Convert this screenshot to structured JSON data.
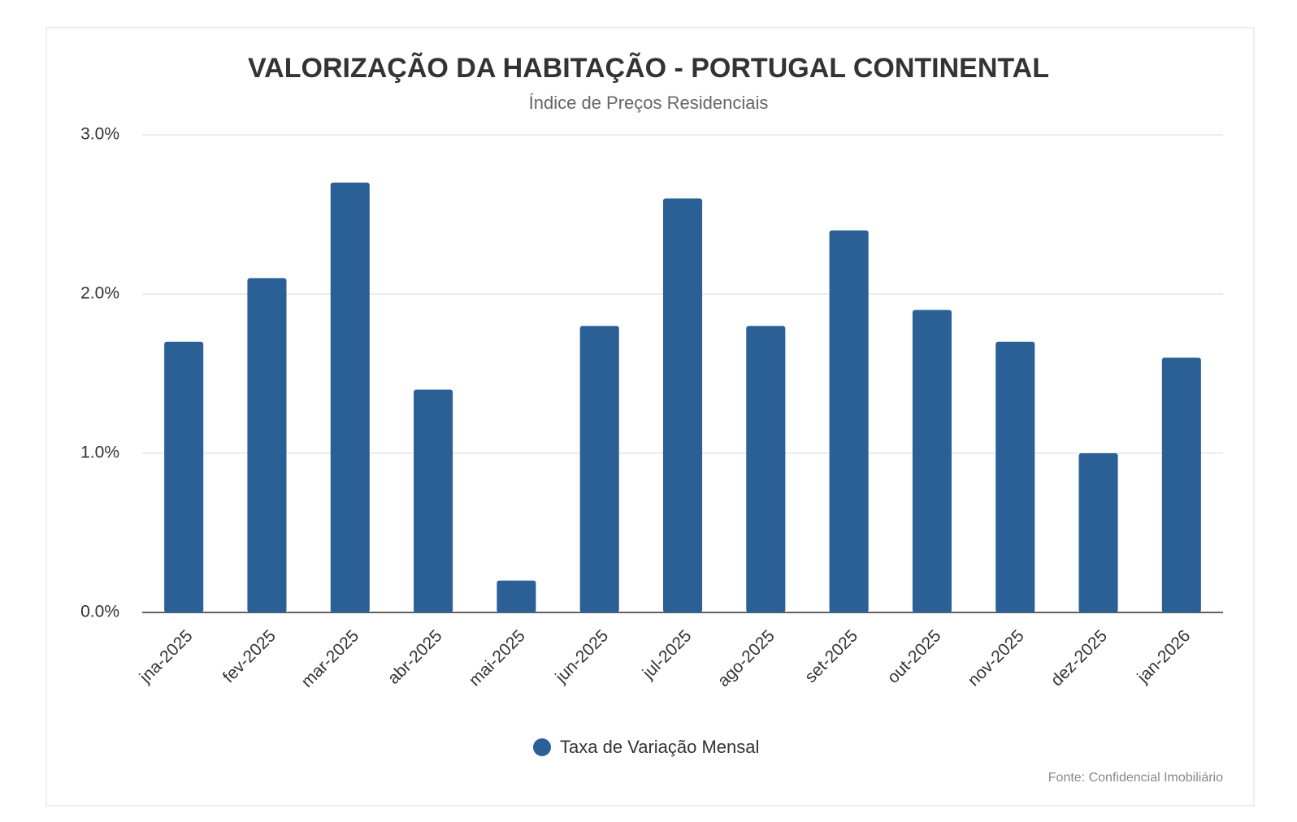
{
  "chart_data": {
    "type": "bar",
    "title": "VALORIZAÇÃO DA HABITAÇÃO - PORTUGAL CONTINENTAL",
    "subtitle": "Índice de Preços Residenciais",
    "categories": [
      "jna-2025",
      "fev-2025",
      "mar-2025",
      "abr-2025",
      "mai-2025",
      "jun-2025",
      "jul-2025",
      "ago-2025",
      "set-2025",
      "out-2025",
      "nov-2025",
      "dez-2025",
      "jan-2026"
    ],
    "series": [
      {
        "name": "Taxa de Variação Mensal",
        "color": "#2a6096",
        "values": [
          1.7,
          2.1,
          2.7,
          1.4,
          0.2,
          1.8,
          2.6,
          1.8,
          2.4,
          1.9,
          1.7,
          1.0,
          1.6
        ]
      }
    ],
    "ylim": [
      0,
      3
    ],
    "yticks": [
      {
        "value": 0,
        "label": "0.0%"
      },
      {
        "value": 1,
        "label": "1.0%"
      },
      {
        "value": 2,
        "label": "2.0%"
      },
      {
        "value": 3,
        "label": "3.0%"
      }
    ],
    "grid": true,
    "source": "Fonte: Confidencial Imobiliário"
  }
}
